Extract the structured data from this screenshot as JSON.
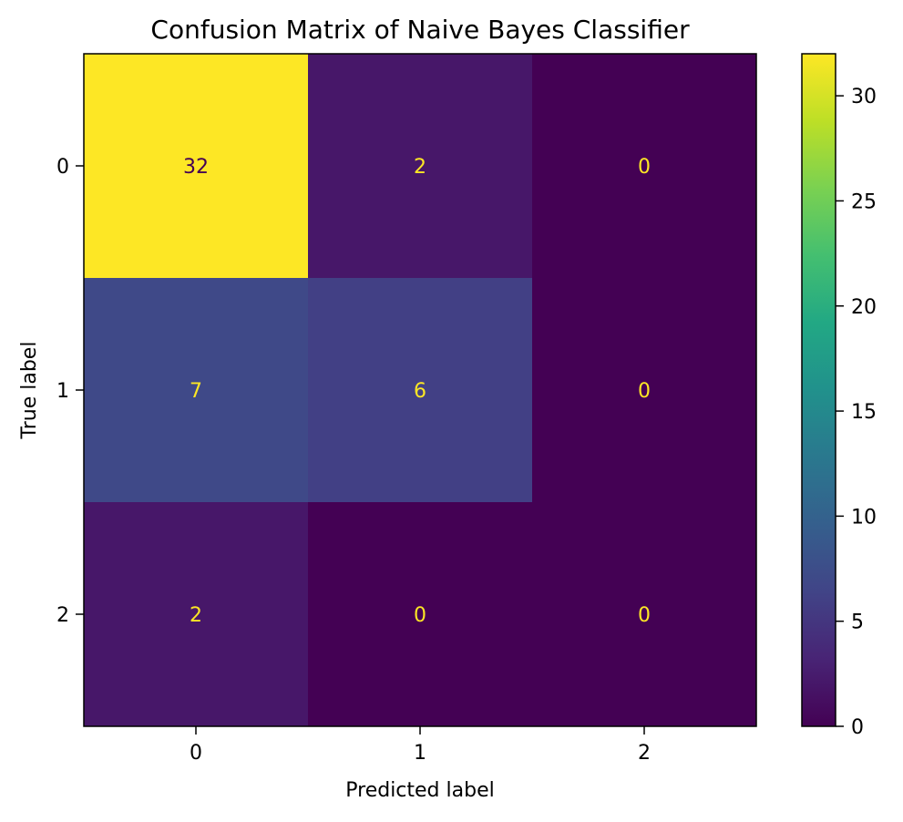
{
  "chart_data": {
    "type": "heatmap",
    "title": "Confusion Matrix of Naive Bayes Classifier",
    "xlabel": "Predicted label",
    "ylabel": "True label",
    "x_categories": [
      "0",
      "1",
      "2"
    ],
    "y_categories": [
      "0",
      "1",
      "2"
    ],
    "values": [
      [
        32,
        2,
        0
      ],
      [
        7,
        6,
        0
      ],
      [
        2,
        0,
        0
      ]
    ],
    "colormap": "viridis",
    "color_range": [
      0,
      32
    ],
    "colorbar": {
      "ticks": [
        0,
        5,
        10,
        15,
        20,
        25,
        30
      ],
      "tick_labels": [
        "0",
        "5",
        "10",
        "15",
        "20",
        "25",
        "30"
      ]
    },
    "cell_text_colors": {
      "high": "#440154",
      "low": "#fde725"
    },
    "grid": false
  }
}
